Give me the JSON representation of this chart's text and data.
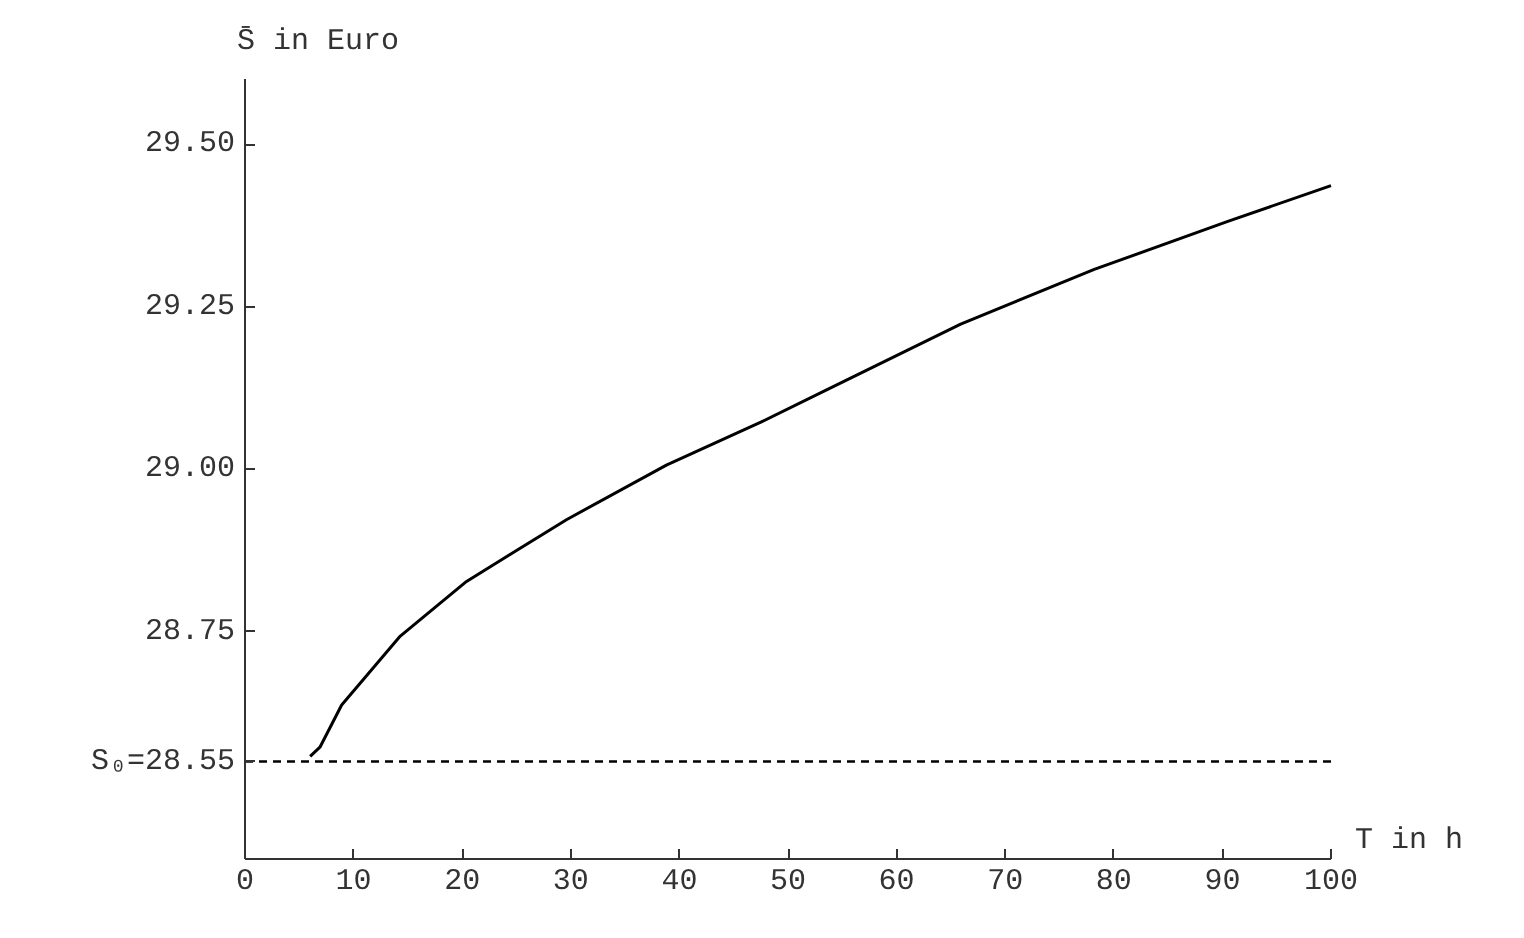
{
  "chart_data": {
    "type": "line",
    "xlabel": "T in h",
    "ylabel": "S̄ in Euro",
    "x": [
      6.0,
      6.9,
      8.9,
      14.3,
      20.4,
      29.6,
      38.8,
      47.5,
      53.6,
      65.9,
      78.2,
      90.5,
      100
    ],
    "series": [
      {
        "color": "#000000",
        "values": [
          28.558,
          28.572,
          28.637,
          28.743,
          28.827,
          28.922,
          29.006,
          29.072,
          29.122,
          29.223,
          29.307,
          29.381,
          29.436
        ]
      }
    ],
    "xlim": [
      0,
      100
    ],
    "ylim": [
      28.4,
      29.6
    ],
    "xticks": [
      0,
      10,
      20,
      30,
      40,
      50,
      60,
      70,
      80,
      90,
      100
    ],
    "yticks": [
      {
        "value": 28.55,
        "label": "S₀=28.55"
      },
      {
        "value": 28.75,
        "label": "28.75"
      },
      {
        "value": 29.0,
        "label": "29.00"
      },
      {
        "value": 29.25,
        "label": "29.25"
      },
      {
        "value": 29.5,
        "label": "29.50"
      }
    ],
    "ref_lines": [
      {
        "axis": "y",
        "value": 28.55,
        "color": "#000000",
        "line_style": "dashed"
      }
    ],
    "grid": false,
    "marker": "none",
    "line_style": "solid"
  }
}
